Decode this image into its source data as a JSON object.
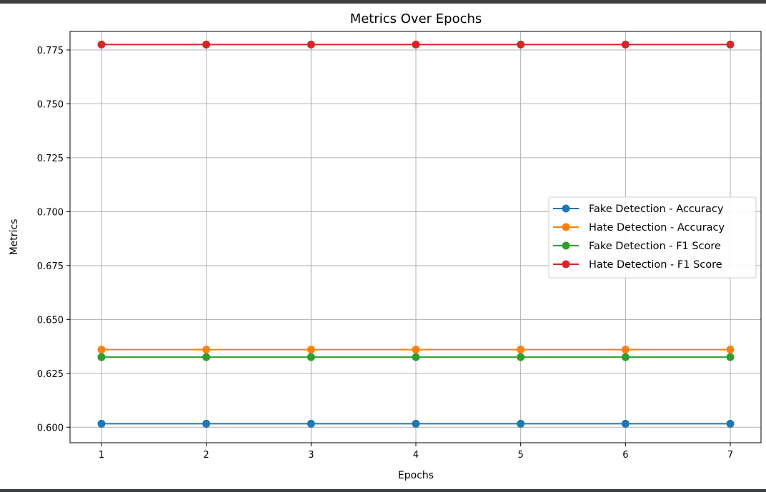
{
  "chart_data": {
    "type": "line",
    "title": "Metrics Over Epochs",
    "xlabel": "Epochs",
    "ylabel": "Metrics",
    "x": [
      1,
      2,
      3,
      4,
      5,
      6,
      7
    ],
    "xticks": [
      "1",
      "2",
      "3",
      "4",
      "5",
      "6",
      "7"
    ],
    "ylim": [
      0.5928,
      0.7836
    ],
    "yticks": [
      "0.600",
      "0.625",
      "0.650",
      "0.675",
      "0.700",
      "0.725",
      "0.750",
      "0.775"
    ],
    "ytick_values": [
      0.6,
      0.625,
      0.65,
      0.675,
      0.7,
      0.725,
      0.75,
      0.775
    ],
    "grid": true,
    "legend_position": "center-right",
    "marker": "circle",
    "series": [
      {
        "name": "Fake Detection - Accuracy",
        "color": "#1f77b4",
        "values": [
          0.6016,
          0.6016,
          0.6016,
          0.6016,
          0.6016,
          0.6016,
          0.6016
        ]
      },
      {
        "name": "Hate Detection - Accuracy",
        "color": "#ff7f0e",
        "values": [
          0.636,
          0.636,
          0.636,
          0.636,
          0.636,
          0.636,
          0.636
        ]
      },
      {
        "name": "Fake Detection - F1 Score",
        "color": "#2ca02c",
        "values": [
          0.6325,
          0.6325,
          0.6325,
          0.6325,
          0.6325,
          0.6325,
          0.6325
        ]
      },
      {
        "name": "Hate Detection - F1 Score",
        "color": "#d62728",
        "values": [
          0.7775,
          0.7775,
          0.7775,
          0.7775,
          0.7775,
          0.7775,
          0.7775
        ]
      }
    ]
  }
}
